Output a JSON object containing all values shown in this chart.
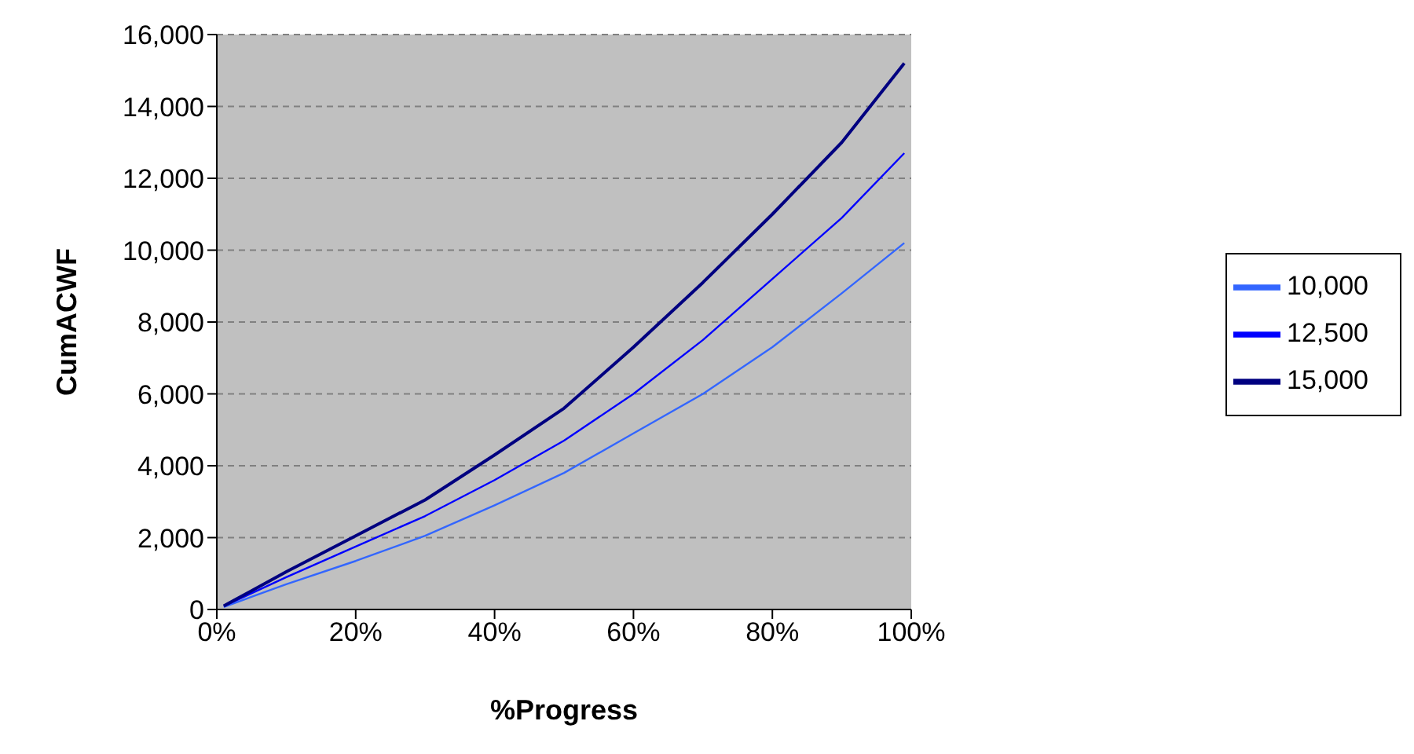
{
  "chart_data": {
    "type": "line",
    "xlabel": "%Progress",
    "ylabel": "CumACWF",
    "xlim": [
      0,
      100
    ],
    "xticks": [
      {
        "value": 0,
        "label": "0%"
      },
      {
        "value": 20,
        "label": "20%"
      },
      {
        "value": 40,
        "label": "40%"
      },
      {
        "value": 60,
        "label": "60%"
      },
      {
        "value": 80,
        "label": "80%"
      },
      {
        "value": 100,
        "label": "100%"
      }
    ],
    "ylim": [
      0,
      16000
    ],
    "yticks": [
      {
        "value": 0,
        "label": "0"
      },
      {
        "value": 2000,
        "label": "2,000"
      },
      {
        "value": 4000,
        "label": "4,000"
      },
      {
        "value": 6000,
        "label": "6,000"
      },
      {
        "value": 8000,
        "label": "8,000"
      },
      {
        "value": 10000,
        "label": "10,000"
      },
      {
        "value": 12000,
        "label": "12,000"
      },
      {
        "value": 14000,
        "label": "14,000"
      },
      {
        "value": 16000,
        "label": "16,000"
      }
    ],
    "x": [
      1,
      5,
      10,
      20,
      30,
      40,
      50,
      60,
      70,
      80,
      90,
      99
    ],
    "series": [
      {
        "name": "10,000",
        "color": "#3366ff",
        "values": [
          70,
          350,
          700,
          1350,
          2050,
          2900,
          3800,
          4900,
          6000,
          7300,
          8800,
          10200
        ]
      },
      {
        "name": "12,500",
        "color": "#0000ff",
        "values": [
          90,
          450,
          900,
          1750,
          2600,
          3600,
          4700,
          6000,
          7500,
          9200,
          10900,
          12700
        ]
      },
      {
        "name": "15,000",
        "color": "#000080",
        "values": [
          100,
          520,
          1050,
          2050,
          3050,
          4300,
          5600,
          7300,
          9100,
          11000,
          13000,
          15200
        ]
      }
    ],
    "grid": "y",
    "legend": "right",
    "marker": "none",
    "line_style": "solid"
  }
}
